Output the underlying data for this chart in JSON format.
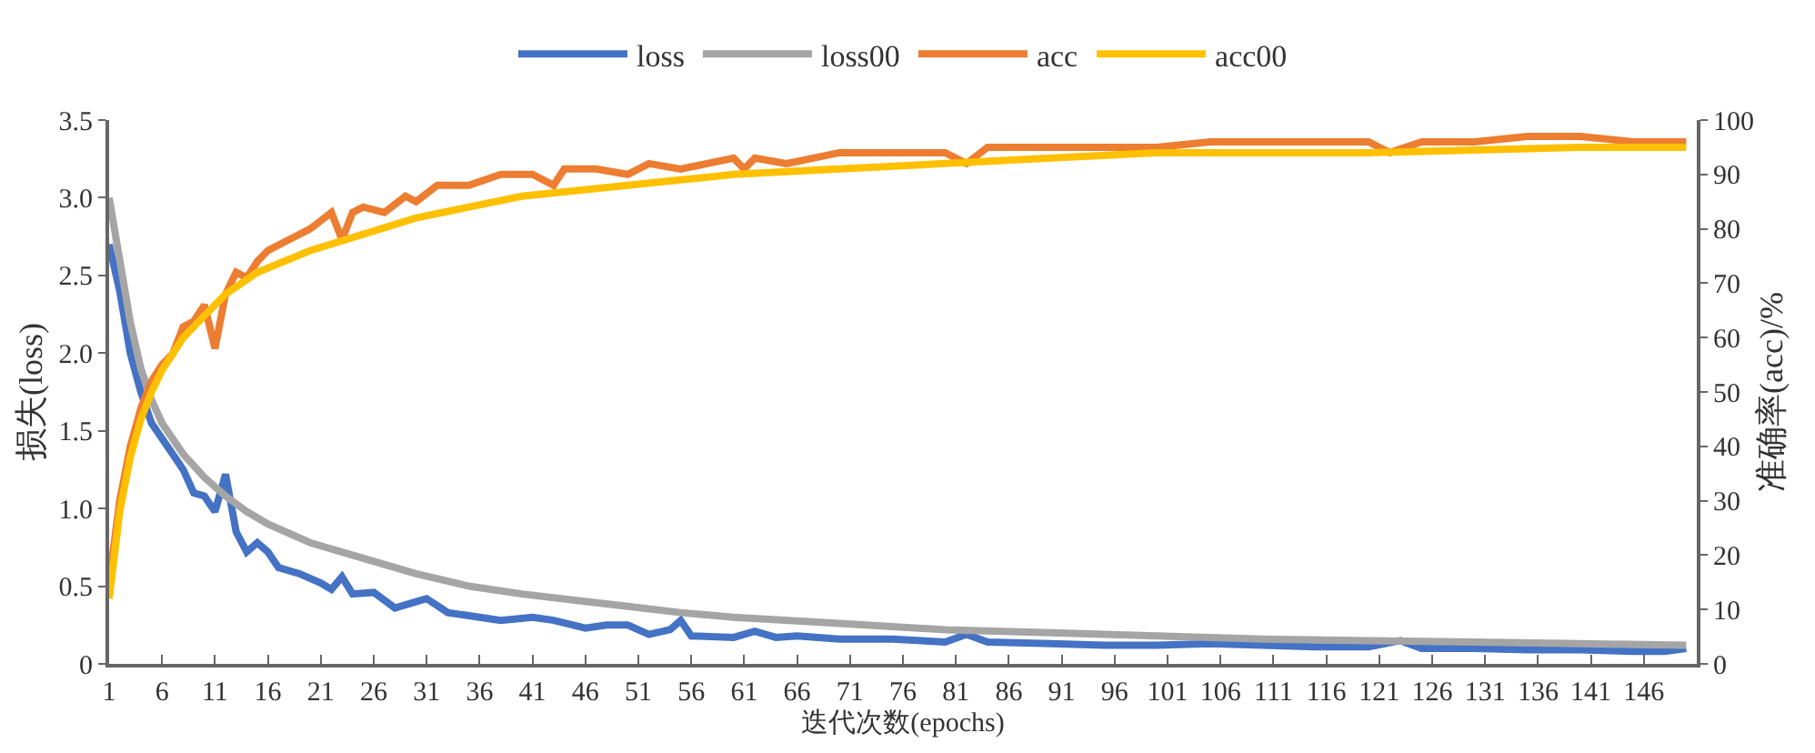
{
  "chart_data": {
    "type": "line",
    "xlabel": "迭代次数(epochs)",
    "ylabel": "损失(loss)",
    "y2label": "准确率(acc)/%",
    "xlim": [
      1,
      151
    ],
    "xticks": [
      1,
      6,
      11,
      16,
      21,
      26,
      31,
      36,
      41,
      46,
      51,
      56,
      61,
      66,
      71,
      76,
      81,
      86,
      91,
      96,
      101,
      106,
      111,
      116,
      121,
      126,
      131,
      136,
      141,
      146
    ],
    "ylim": [
      0,
      3.5
    ],
    "yticks": [
      {
        "value": 0,
        "label": "0"
      },
      {
        "value": 0.5,
        "label": "0.5"
      },
      {
        "value": 1,
        "label": "1.0"
      },
      {
        "value": 1.5,
        "label": "1.5"
      },
      {
        "value": 2,
        "label": "2.0"
      },
      {
        "value": 2.5,
        "label": "2.5"
      },
      {
        "value": 3,
        "label": "3.0"
      },
      {
        "value": 3.5,
        "label": "3.5"
      }
    ],
    "y2lim": [
      0,
      100
    ],
    "y2ticks": [
      0,
      10,
      20,
      30,
      40,
      50,
      60,
      70,
      80,
      90,
      100
    ],
    "legend": "top",
    "marker": "none",
    "line_style": "solid",
    "series": [
      {
        "name": "loss",
        "color": "#4472c4",
        "x": [
          1,
          2,
          3,
          4,
          5,
          6,
          7,
          8,
          9,
          10,
          11,
          12,
          13,
          14,
          15,
          16,
          17,
          19,
          21,
          22,
          23,
          24,
          26,
          28,
          30,
          31,
          33,
          36,
          38,
          41,
          43,
          46,
          48,
          50,
          52,
          54,
          55,
          56,
          60,
          62,
          64,
          66,
          70,
          75,
          80,
          82,
          84,
          90,
          95,
          100,
          105,
          110,
          115,
          120,
          123,
          125,
          130,
          135,
          140,
          145,
          148,
          150
        ],
        "values": [
          2.7,
          2.4,
          2.0,
          1.75,
          1.55,
          1.45,
          1.35,
          1.25,
          1.1,
          1.08,
          0.98,
          1.22,
          0.85,
          0.72,
          0.78,
          0.72,
          0.62,
          0.58,
          0.52,
          0.48,
          0.56,
          0.45,
          0.46,
          0.36,
          0.4,
          0.42,
          0.33,
          0.3,
          0.28,
          0.3,
          0.28,
          0.23,
          0.25,
          0.25,
          0.19,
          0.22,
          0.28,
          0.18,
          0.17,
          0.21,
          0.17,
          0.18,
          0.16,
          0.16,
          0.14,
          0.19,
          0.14,
          0.13,
          0.12,
          0.12,
          0.13,
          0.12,
          0.11,
          0.11,
          0.15,
          0.1,
          0.1,
          0.09,
          0.09,
          0.08,
          0.08,
          0.1
        ]
      },
      {
        "name": "loss00",
        "color": "#a5a5a5",
        "x": [
          1,
          2,
          3,
          4,
          5,
          6,
          8,
          10,
          12,
          14,
          16,
          20,
          25,
          30,
          35,
          40,
          45,
          50,
          55,
          60,
          70,
          80,
          90,
          100,
          110,
          120,
          130,
          140,
          150
        ],
        "values": [
          3.0,
          2.6,
          2.2,
          1.9,
          1.7,
          1.55,
          1.35,
          1.2,
          1.08,
          0.98,
          0.9,
          0.78,
          0.68,
          0.58,
          0.5,
          0.45,
          0.41,
          0.37,
          0.33,
          0.3,
          0.26,
          0.22,
          0.2,
          0.18,
          0.16,
          0.15,
          0.14,
          0.13,
          0.12
        ]
      },
      {
        "name": "acc",
        "color": "#ed7d31",
        "axis": "y2",
        "x": [
          1,
          2,
          3,
          4,
          5,
          6,
          7,
          8,
          9,
          10,
          11,
          12,
          13,
          14,
          15,
          16,
          18,
          20,
          22,
          23,
          24,
          25,
          27,
          29,
          30,
          32,
          35,
          38,
          41,
          43,
          44,
          47,
          50,
          52,
          55,
          60,
          61,
          62,
          65,
          70,
          75,
          80,
          82,
          84,
          90,
          95,
          100,
          105,
          110,
          115,
          120,
          122,
          125,
          130,
          135,
          140,
          145,
          150
        ],
        "values": [
          15,
          30,
          40,
          47,
          52,
          55,
          57,
          62,
          63,
          66,
          58,
          68,
          72,
          71,
          74,
          76,
          78,
          80,
          83,
          78,
          83,
          84,
          83,
          86,
          85,
          88,
          88,
          90,
          90,
          88,
          91,
          91,
          90,
          92,
          91,
          93,
          91,
          93,
          92,
          94,
          94,
          94,
          92,
          95,
          95,
          95,
          95,
          96,
          96,
          96,
          96,
          94,
          96,
          96,
          97,
          97,
          96,
          96
        ]
      },
      {
        "name": "acc00",
        "color": "#ffc000",
        "axis": "y2",
        "x": [
          1,
          2,
          3,
          4,
          5,
          6,
          8,
          10,
          12,
          15,
          20,
          25,
          30,
          35,
          40,
          45,
          50,
          55,
          60,
          70,
          80,
          90,
          100,
          110,
          120,
          130,
          140,
          150
        ],
        "values": [
          12,
          28,
          38,
          45,
          50,
          54,
          60,
          64,
          68,
          72,
          76,
          79,
          82,
          84,
          86,
          87,
          88,
          89,
          90,
          91,
          92,
          93,
          94,
          94,
          94,
          94.5,
          95,
          95
        ]
      }
    ]
  }
}
